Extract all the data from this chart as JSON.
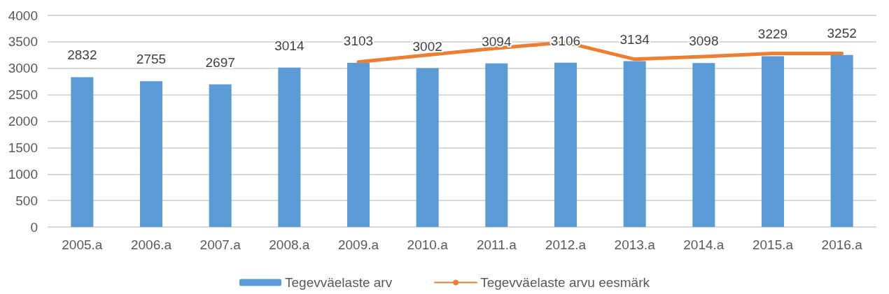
{
  "chart_data": {
    "type": "bar",
    "categories": [
      "2005.a",
      "2006.a",
      "2007.a",
      "2008.a",
      "2009.a",
      "2010.a",
      "2011.a",
      "2012.a",
      "2013.a",
      "2014.a",
      "2015.a",
      "2016.a"
    ],
    "series": [
      {
        "name": "Tegevväelaste arv",
        "color": "#5b9bd5",
        "values": [
          2832,
          2755,
          2697,
          3014,
          3103,
          3002,
          3094,
          3106,
          3134,
          3098,
          3229,
          3252
        ],
        "data_labels": true
      },
      {
        "name": "Tegevväelaste arvu eesmärk",
        "type": "line",
        "color": "#ed7d31",
        "values": [
          null,
          null,
          null,
          null,
          3120,
          3250,
          3380,
          3490,
          3170,
          3220,
          3280,
          3280
        ]
      }
    ],
    "ylim": [
      0,
      4000
    ],
    "yticks": [
      0,
      500,
      1000,
      1500,
      2000,
      2500,
      3000,
      3500,
      4000
    ],
    "grid": "y",
    "legend": "bottom",
    "marker": "none"
  }
}
